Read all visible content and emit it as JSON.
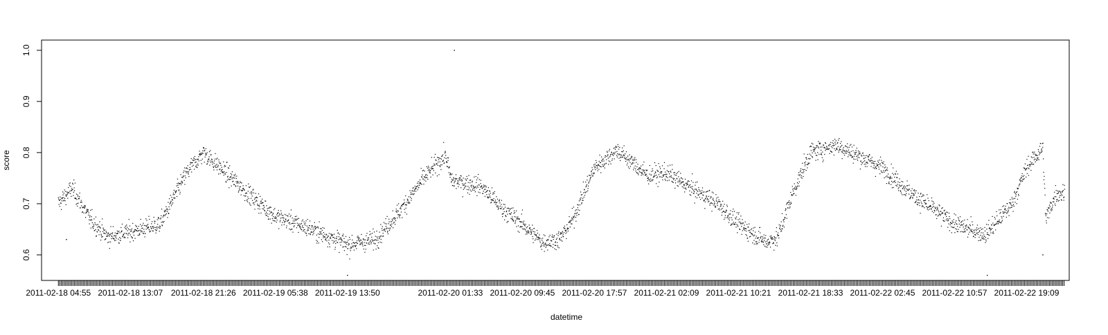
{
  "chart_data": {
    "type": "scatter",
    "xlabel": "datetime",
    "ylabel": "score",
    "ylim": [
      0.55,
      1.02
    ],
    "y_ticks": [
      0.6,
      0.7,
      0.8,
      0.9,
      1.0
    ],
    "y_tick_labels": [
      "0.6",
      "0.7",
      "0.8",
      "0.9",
      "1.0"
    ],
    "x_range": [
      "2011-02-18 03:00",
      "2011-02-23 00:00"
    ],
    "x_ticks": [
      "2011-02-18 04:55",
      "2011-02-18 13:07",
      "2011-02-18 21:26",
      "2011-02-19 05:38",
      "2011-02-19 13:50",
      "2011-02-20 01:33",
      "2011-02-20 09:45",
      "2011-02-20 17:57",
      "2011-02-21 02:09",
      "2011-02-21 10:21",
      "2011-02-21 18:33",
      "2011-02-22 02:45",
      "2011-02-22 10:57",
      "2011-02-22 19:09"
    ],
    "series_trend": {
      "x": [
        "2011-02-18 04:55",
        "2011-02-18 06:30",
        "2011-02-18 08:30",
        "2011-02-18 10:30",
        "2011-02-18 13:07",
        "2011-02-18 16:30",
        "2011-02-18 19:30",
        "2011-02-18 21:26",
        "2011-02-19 00:00",
        "2011-02-19 02:30",
        "2011-02-19 05:38",
        "2011-02-19 09:00",
        "2011-02-19 13:50",
        "2011-02-19 17:00",
        "2011-02-19 20:00",
        "2011-02-19 22:30",
        "2011-02-20 01:00",
        "2011-02-20 01:40",
        "2011-02-20 05:00",
        "2011-02-20 07:30",
        "2011-02-20 09:45",
        "2011-02-20 12:00",
        "2011-02-20 14:00",
        "2011-02-20 15:30",
        "2011-02-20 17:57",
        "2011-02-20 20:30",
        "2011-02-21 00:00",
        "2011-02-21 02:09",
        "2011-02-21 05:00",
        "2011-02-21 08:00",
        "2011-02-21 10:21",
        "2011-02-21 13:30",
        "2011-02-21 14:50",
        "2011-02-21 16:30",
        "2011-02-21 18:33",
        "2011-02-21 21:30",
        "2011-02-22 02:45",
        "2011-02-22 06:00",
        "2011-02-22 10:57",
        "2011-02-22 14:30",
        "2011-02-22 17:30",
        "2011-02-22 19:09",
        "2011-02-22 21:00",
        "2011-02-22 21:20",
        "2011-02-22 22:30",
        "2011-02-22 23:30"
      ],
      "y": [
        0.7,
        0.73,
        0.67,
        0.635,
        0.645,
        0.66,
        0.76,
        0.8,
        0.76,
        0.72,
        0.675,
        0.655,
        0.62,
        0.63,
        0.69,
        0.75,
        0.795,
        0.745,
        0.735,
        0.69,
        0.66,
        0.625,
        0.63,
        0.67,
        0.77,
        0.805,
        0.755,
        0.76,
        0.73,
        0.7,
        0.66,
        0.625,
        0.635,
        0.72,
        0.8,
        0.815,
        0.77,
        0.72,
        0.66,
        0.64,
        0.7,
        0.77,
        0.81,
        0.67,
        0.72,
        0.72
      ]
    },
    "outliers": [
      {
        "x": "2011-02-20 02:00",
        "y": 1.0
      },
      {
        "x": "2011-02-18 05:50",
        "y": 0.63
      },
      {
        "x": "2011-02-19 13:50",
        "y": 0.56
      },
      {
        "x": "2011-02-22 14:40",
        "y": 0.56
      },
      {
        "x": "2011-02-22 21:00",
        "y": 0.6
      }
    ],
    "grid": false,
    "legend": "none",
    "point_color": "#000000"
  }
}
